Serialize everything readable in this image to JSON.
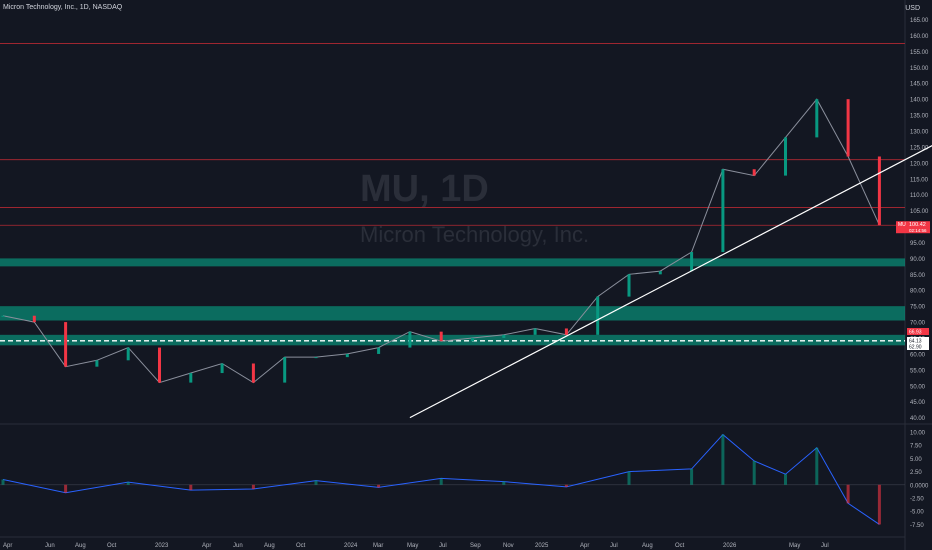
{
  "header": {
    "symbol_line": "Micron Technology, Inc., 1D, NASDAQ",
    "currency": "USD"
  },
  "watermark": {
    "symbol": "MU, 1D",
    "name": "Micron Technology, Inc."
  },
  "colors": {
    "background": "#131722",
    "grid": "#1e222d",
    "axis_text": "#b2b5be",
    "resistance_line": "#b22833",
    "support_zone": "#089981",
    "trendline": "#ffffff",
    "up": "#089981",
    "down": "#f23645",
    "price_tag": "#f23645"
  },
  "price_axis": {
    "labels": [
      "165.00",
      "160.00",
      "155.00",
      "150.00",
      "145.00",
      "140.00",
      "135.00",
      "130.00",
      "125.00",
      "120.00",
      "115.00",
      "110.00",
      "105.00",
      "100.00",
      "95.00",
      "90.00",
      "85.00",
      "80.00",
      "75.00",
      "70.00",
      "65.00",
      "60.00",
      "55.00",
      "50.00",
      "45.00",
      "40.00"
    ],
    "current_price_tag": {
      "symbol": "MU",
      "price": "100.42",
      "countdown": "02:14:56"
    },
    "level_tags": [
      {
        "text": "66.93",
        "type": "red"
      },
      {
        "text": "64.13",
        "type": "white"
      },
      {
        "text": "62.90",
        "type": "white"
      }
    ]
  },
  "indicator_axis": {
    "labels": [
      "10.00",
      "7.50",
      "5.00",
      "2.50",
      "0.0000",
      "-2.50",
      "-5.00",
      "-7.50"
    ]
  },
  "time_axis": {
    "labels": [
      "Apr",
      "Jun",
      "Aug",
      "Oct",
      "2023",
      "Apr",
      "Jun",
      "Aug",
      "Oct",
      "2024",
      "Mar",
      "May",
      "Jul",
      "Sep",
      "Nov",
      "2025",
      "Apr",
      "Jul",
      "Aug",
      "Oct",
      "2026",
      "May",
      "Jul"
    ]
  },
  "chart_data": {
    "type": "candlestick",
    "symbol": "MU",
    "interval": "1D",
    "exchange": "NASDAQ",
    "ylim": [
      38,
      168
    ],
    "horizontal_levels": [
      157.5,
      121,
      106,
      100.42
    ],
    "support_zones": [
      [
        87.5,
        90
      ],
      [
        70.5,
        75
      ],
      [
        62.7,
        66
      ]
    ],
    "dashed_level": 64.13,
    "trendline": {
      "from": [
        "2023-05",
        40
      ],
      "to": [
        "2025-06",
        168
      ]
    },
    "close_series": [
      {
        "date": "2022-04",
        "close": 72
      },
      {
        "date": "2022-05",
        "close": 70
      },
      {
        "date": "2022-06",
        "close": 56
      },
      {
        "date": "2022-07",
        "close": 58
      },
      {
        "date": "2022-08",
        "close": 62
      },
      {
        "date": "2022-09",
        "close": 51
      },
      {
        "date": "2022-10",
        "close": 54
      },
      {
        "date": "2022-11",
        "close": 57
      },
      {
        "date": "2022-12",
        "close": 51
      },
      {
        "date": "2023-01",
        "close": 59
      },
      {
        "date": "2023-02",
        "close": 59
      },
      {
        "date": "2023-03",
        "close": 60
      },
      {
        "date": "2023-04",
        "close": 62
      },
      {
        "date": "2023-05",
        "close": 67
      },
      {
        "date": "2023-06",
        "close": 64
      },
      {
        "date": "2023-07",
        "close": 65
      },
      {
        "date": "2023-08",
        "close": 66
      },
      {
        "date": "2023-09",
        "close": 68
      },
      {
        "date": "2023-10",
        "close": 66
      },
      {
        "date": "2023-11",
        "close": 78
      },
      {
        "date": "2023-12",
        "close": 85
      },
      {
        "date": "2024-01",
        "close": 86
      },
      {
        "date": "2024-02",
        "close": 92
      },
      {
        "date": "2024-03",
        "close": 118
      },
      {
        "date": "2024-04",
        "close": 116
      },
      {
        "date": "2024-05",
        "close": 128
      },
      {
        "date": "2024-06",
        "close": 140
      },
      {
        "date": "2024-07",
        "close": 122
      },
      {
        "date": "2024-08",
        "close": 100.42
      }
    ],
    "indicator_series": [
      {
        "date": "2022-04",
        "value": 1.0
      },
      {
        "date": "2022-06",
        "value": -1.5
      },
      {
        "date": "2022-08",
        "value": 0.5
      },
      {
        "date": "2022-10",
        "value": -1.0
      },
      {
        "date": "2022-12",
        "value": -0.8
      },
      {
        "date": "2023-02",
        "value": 0.8
      },
      {
        "date": "2023-04",
        "value": -0.5
      },
      {
        "date": "2023-06",
        "value": 1.2
      },
      {
        "date": "2023-08",
        "value": 0.6
      },
      {
        "date": "2023-10",
        "value": -0.4
      },
      {
        "date": "2023-12",
        "value": 2.5
      },
      {
        "date": "2024-02",
        "value": 3.0
      },
      {
        "date": "2024-03",
        "value": 9.5
      },
      {
        "date": "2024-04",
        "value": 4.5
      },
      {
        "date": "2024-05",
        "value": 2.0
      },
      {
        "date": "2024-06",
        "value": 7.0
      },
      {
        "date": "2024-07",
        "value": -3.5
      },
      {
        "date": "2024-08",
        "value": -7.5
      }
    ]
  }
}
